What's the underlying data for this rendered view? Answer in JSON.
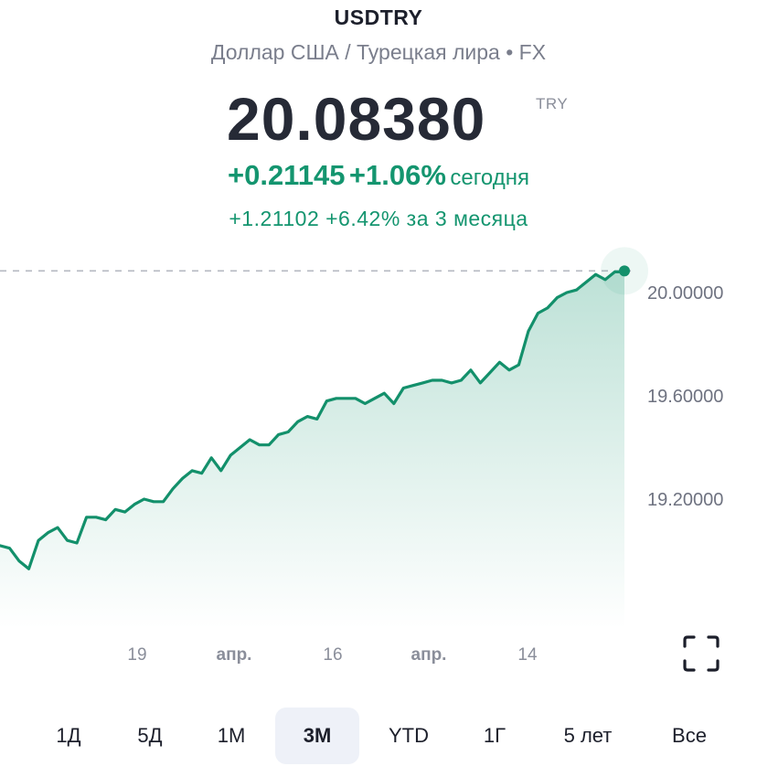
{
  "header": {
    "symbol": "USDTRY",
    "subtitle": "Доллар США / Турецкая лира • FX",
    "price": "20.08380",
    "currency": "TRY",
    "change_abs": "+0.21145",
    "change_pct": "+1.06%",
    "change_label": "сегодня",
    "period_change": "+1.21102  +6.42% за 3 месяца"
  },
  "colors": {
    "accent": "#14956f",
    "line": "#13906b",
    "active_range_bg": "#eef1f8"
  },
  "chart_data": {
    "type": "area",
    "y_ticks": [
      "20.00000",
      "19.60000",
      "19.20000"
    ],
    "y_tick_values": [
      20.0,
      19.6,
      19.2
    ],
    "ylim": [
      18.7,
      20.17
    ],
    "x_ticks": [
      {
        "label": "19",
        "bold": false
      },
      {
        "label": "апр.",
        "bold": true
      },
      {
        "label": "16",
        "bold": false
      },
      {
        "label": "апр.",
        "bold": true
      },
      {
        "label": "14",
        "bold": false
      }
    ],
    "last_value": 20.0838,
    "values": [
      19.02,
      19.01,
      18.96,
      18.93,
      19.04,
      19.07,
      19.09,
      19.04,
      19.03,
      19.13,
      19.13,
      19.12,
      19.16,
      19.15,
      19.18,
      19.2,
      19.19,
      19.19,
      19.24,
      19.28,
      19.31,
      19.3,
      19.36,
      19.31,
      19.37,
      19.4,
      19.43,
      19.41,
      19.41,
      19.45,
      19.46,
      19.5,
      19.52,
      19.51,
      19.58,
      19.59,
      19.59,
      19.59,
      19.57,
      19.59,
      19.61,
      19.57,
      19.63,
      19.64,
      19.65,
      19.66,
      19.66,
      19.65,
      19.66,
      19.7,
      19.65,
      19.69,
      19.73,
      19.7,
      19.72,
      19.85,
      19.92,
      19.94,
      19.98,
      20.0,
      20.01,
      20.04,
      20.07,
      20.05,
      20.08,
      20.08
    ],
    "reference_line": 20.0838
  },
  "ranges": [
    {
      "label": "1Д",
      "active": false
    },
    {
      "label": "5Д",
      "active": false
    },
    {
      "label": "1М",
      "active": false
    },
    {
      "label": "3М",
      "active": true
    },
    {
      "label": "YTD",
      "active": false
    },
    {
      "label": "1Г",
      "active": false
    },
    {
      "label": "5 лет",
      "active": false
    },
    {
      "label": "Все",
      "active": false
    }
  ]
}
